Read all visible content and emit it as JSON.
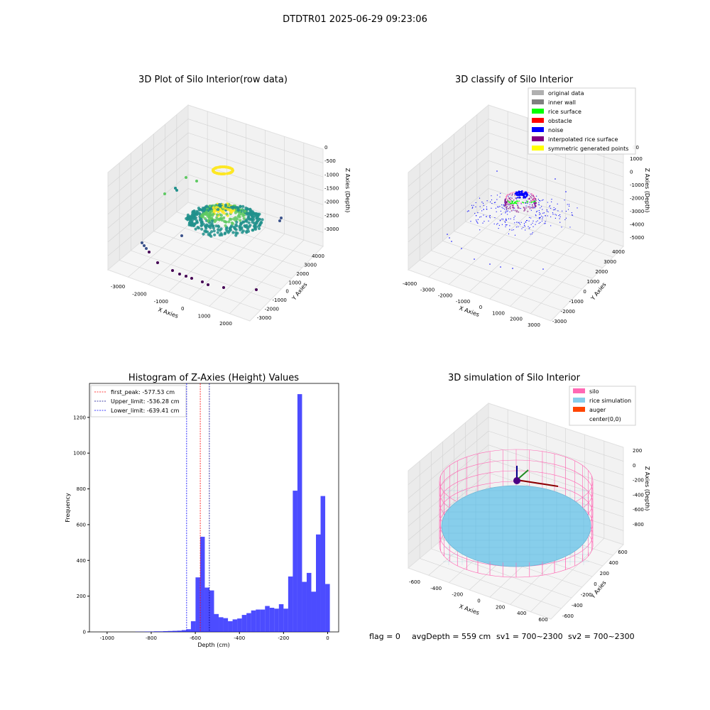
{
  "figure": {
    "suptitle": "DTDTR01 2025-06-29 09:23:06",
    "status": {
      "flag": "flag = 0",
      "avg_depth": "avgDepth = 559 cm",
      "sv1": "sv1 = 700~2300",
      "sv2": "sv2 = 700~2300"
    }
  },
  "panels": {
    "raw": {
      "title": "3D Plot of Silo Interior(row data)",
      "xlabel": "X Axies",
      "ylabel": "Y Axies",
      "zlabel": "Z Axies (Depth)",
      "xticks": [
        "-3000",
        "-2000",
        "-1000",
        "0",
        "1000",
        "2000"
      ],
      "yticks": [
        "-3000",
        "-2000",
        "-1000",
        "0",
        "1000",
        "2000",
        "3000",
        "4000"
      ],
      "zticks": [
        "0",
        "-500",
        "-1000",
        "-1500",
        "-2000",
        "-2500",
        "-3000"
      ],
      "colormap": [
        "#440154",
        "#3b528b",
        "#21918c",
        "#5ec962",
        "#fde725"
      ]
    },
    "classify": {
      "title": "3D classify of Silo Interior",
      "xlabel": "X Axies",
      "ylabel": "Y Axies",
      "zlabel": "Z Axies (Depth)",
      "xticks": [
        "-4000",
        "-3000",
        "-2000",
        "-1000",
        "0",
        "1000",
        "2000",
        "3000"
      ],
      "yticks": [
        "-3000",
        "-2000",
        "-1000",
        "0",
        "1000",
        "2000",
        "3000",
        "4000"
      ],
      "zticks": [
        "1000",
        "0",
        "-1000",
        "-2000",
        "-3000",
        "-4000",
        "-5000"
      ],
      "ztick_top_partial": "00",
      "legend": [
        {
          "label": "original data",
          "color": "#b0b0b0"
        },
        {
          "label": "inner wall",
          "color": "#808080"
        },
        {
          "label": "rice surface",
          "color": "#00ff00"
        },
        {
          "label": "obstacle",
          "color": "#ff0000"
        },
        {
          "label": "noise",
          "color": "#0000ff"
        },
        {
          "label": "interpolated rice surface",
          "color": "#800080"
        },
        {
          "label": "symmetric generated points",
          "color": "#ffff00"
        }
      ]
    },
    "simulation": {
      "title": "3D simulation of Silo Interior",
      "xlabel": "X Axies",
      "ylabel": "Y Axies",
      "zlabel": "Z Axies (Depth)",
      "xticks": [
        "-600",
        "-400",
        "-200",
        "0",
        "200",
        "400",
        "600"
      ],
      "yticks": [
        "-600",
        "-400",
        "-200",
        "0",
        "200",
        "400",
        "600"
      ],
      "zticks": [
        "200",
        "0",
        "-200",
        "-400",
        "-600",
        "-800"
      ],
      "legend": [
        {
          "label": "silo",
          "color": "#ff69b4"
        },
        {
          "label": "rice simulation",
          "color": "#87ceeb"
        },
        {
          "label": "auger",
          "color": "#ff4500"
        },
        {
          "label": "center(0,0)",
          "color": ""
        }
      ]
    }
  },
  "chart_data": [
    {
      "type": "scatter",
      "title": "3D Plot of Silo Interior(row data)",
      "xlabel": "X Axies",
      "ylabel": "Y Axies",
      "zlabel": "Z Axies (Depth)",
      "xlim": [
        -3500,
        2500
      ],
      "ylim": [
        -3500,
        4500
      ],
      "zlim": [
        -3300,
        200
      ]
    },
    {
      "type": "scatter",
      "title": "3D classify of Silo Interior",
      "xlabel": "X Axies",
      "ylabel": "Y Axies",
      "zlabel": "Z Axies (Depth)",
      "xlim": [
        -4200,
        3200
      ],
      "ylim": [
        -3500,
        4500
      ],
      "zlim": [
        -5200,
        1200
      ],
      "series": [
        {
          "name": "original data"
        },
        {
          "name": "inner wall"
        },
        {
          "name": "rice surface"
        },
        {
          "name": "obstacle"
        },
        {
          "name": "noise"
        },
        {
          "name": "interpolated rice surface"
        },
        {
          "name": "symmetric generated points"
        }
      ],
      "legend": "top-right"
    },
    {
      "type": "bar",
      "title": "Histogram of Z-Axies (Height) Values",
      "xlabel": "Depth (cm)",
      "ylabel": "Frequency",
      "xlim": [
        -1080,
        50
      ],
      "ylim": [
        0,
        1390
      ],
      "xticks": [
        -1000,
        -800,
        -600,
        -400,
        -200,
        0
      ],
      "yticks": [
        0,
        200,
        400,
        600,
        800,
        1000,
        1200
      ],
      "bar_color": "#0000ff",
      "bin_width": 21,
      "bins": [
        {
          "x": -1040,
          "value": 0
        },
        {
          "x": -1019,
          "value": 0
        },
        {
          "x": -998,
          "value": 0
        },
        {
          "x": -977,
          "value": 0
        },
        {
          "x": -956,
          "value": 0
        },
        {
          "x": -935,
          "value": 0
        },
        {
          "x": -914,
          "value": 0
        },
        {
          "x": -893,
          "value": 0
        },
        {
          "x": -872,
          "value": 1
        },
        {
          "x": -851,
          "value": 1
        },
        {
          "x": -830,
          "value": 2
        },
        {
          "x": -809,
          "value": 2
        },
        {
          "x": -788,
          "value": 3
        },
        {
          "x": -767,
          "value": 3
        },
        {
          "x": -746,
          "value": 4
        },
        {
          "x": -725,
          "value": 5
        },
        {
          "x": -704,
          "value": 6
        },
        {
          "x": -683,
          "value": 7
        },
        {
          "x": -662,
          "value": 10
        },
        {
          "x": -641,
          "value": 15
        },
        {
          "x": -620,
          "value": 60
        },
        {
          "x": -599,
          "value": 305
        },
        {
          "x": -578,
          "value": 532
        },
        {
          "x": -557,
          "value": 248
        },
        {
          "x": -536,
          "value": 232
        },
        {
          "x": -515,
          "value": 100
        },
        {
          "x": -494,
          "value": 82
        },
        {
          "x": -473,
          "value": 77
        },
        {
          "x": -452,
          "value": 60
        },
        {
          "x": -431,
          "value": 70
        },
        {
          "x": -410,
          "value": 75
        },
        {
          "x": -389,
          "value": 95
        },
        {
          "x": -368,
          "value": 105
        },
        {
          "x": -347,
          "value": 120
        },
        {
          "x": -326,
          "value": 125
        },
        {
          "x": -305,
          "value": 125
        },
        {
          "x": -284,
          "value": 145
        },
        {
          "x": -263,
          "value": 135
        },
        {
          "x": -242,
          "value": 130
        },
        {
          "x": -221,
          "value": 155
        },
        {
          "x": -200,
          "value": 130
        },
        {
          "x": -179,
          "value": 310
        },
        {
          "x": -158,
          "value": 790
        },
        {
          "x": -137,
          "value": 1330
        },
        {
          "x": -116,
          "value": 280
        },
        {
          "x": -95,
          "value": 330
        },
        {
          "x": -74,
          "value": 225
        },
        {
          "x": -53,
          "value": 545
        },
        {
          "x": -32,
          "value": 760
        },
        {
          "x": -11,
          "value": 268
        }
      ],
      "vlines": [
        {
          "label": "first_peak: -577.53 cm",
          "x": -577.53,
          "color": "#ff0000"
        },
        {
          "label": "Upper_limit: -536.28 cm",
          "x": -536.28,
          "color": "#00008b"
        },
        {
          "label": "Lower_limit: -639.41 cm",
          "x": -639.41,
          "color": "#0000ff"
        }
      ],
      "legend": "top-left"
    },
    {
      "type": "scatter",
      "title": "3D simulation of Silo Interior",
      "xlabel": "X Axies",
      "ylabel": "Y Axies",
      "zlabel": "Z Axies (Depth)",
      "xlim": [
        -650,
        650
      ],
      "ylim": [
        -650,
        650
      ],
      "zlim": [
        -950,
        350
      ],
      "series": [
        {
          "name": "silo"
        },
        {
          "name": "rice simulation"
        },
        {
          "name": "auger"
        },
        {
          "name": "center(0,0)"
        }
      ],
      "legend": "top-right"
    }
  ]
}
